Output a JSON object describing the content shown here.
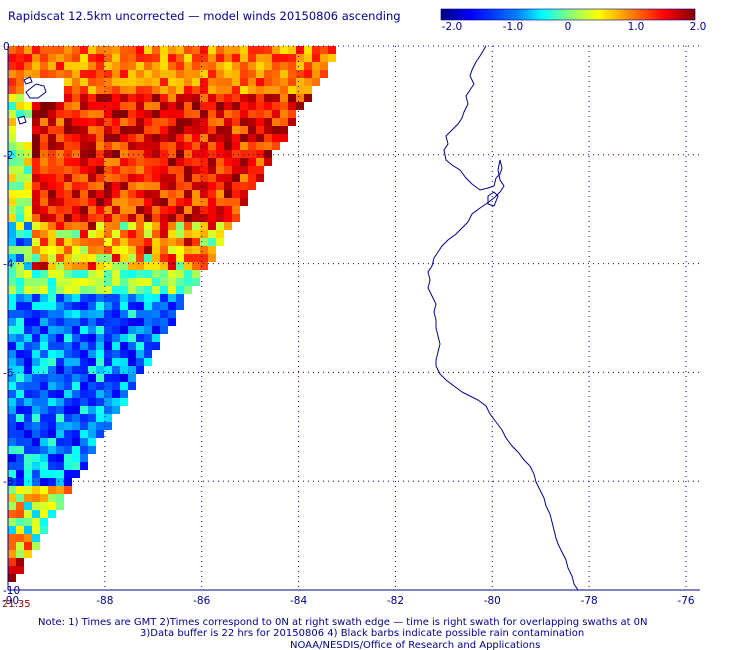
{
  "title": "Rapidscat 12.5km uncorrected — model winds 20150806 ascending",
  "colorbar": {
    "tick_labels": [
      "-2.0",
      "-1.0",
      "0",
      "1.0",
      "2.0"
    ],
    "tick_values": [
      -2.0,
      -1.0,
      0,
      1.0,
      2.0
    ],
    "range": [
      -2.0,
      2.0
    ],
    "colors": [
      "#00007f",
      "#0000ff",
      "#007fff",
      "#00ffff",
      "#7fff7f",
      "#ffff00",
      "#ff7f00",
      "#ff0000",
      "#7f0000"
    ]
  },
  "lat_labels": [
    "0",
    "-2",
    "-4",
    "-6",
    "-8",
    "-10"
  ],
  "lon_labels": [
    "-90",
    "-88",
    "-86",
    "-84",
    "-82",
    "-80",
    "-78",
    "-76"
  ],
  "time_label": "21.35",
  "notes": {
    "line1": "Note: 1) Times are GMT 2)Times correspond to 0N at right swath edge — time is right swath for overlapping swaths at 0N",
    "line2": "3)Data buffer is 22 hrs for 20150806 4) Black barbs indicate possible rain contamination",
    "line3": "NOAA/NESDIS/Office of Research and Applications"
  },
  "map_style": {
    "coast_color": "#00008b",
    "grid_color": "#00008b",
    "axis_color": "#00008b"
  }
}
